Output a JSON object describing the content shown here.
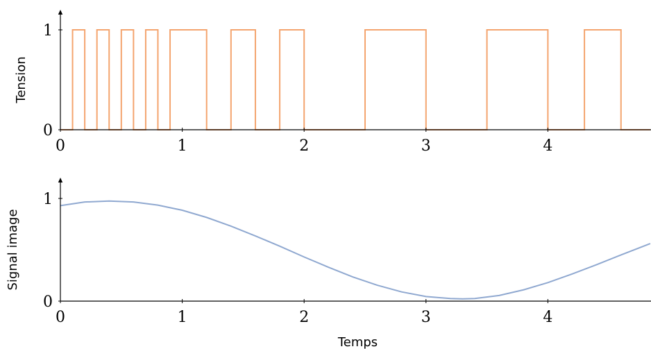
{
  "chart_data": [
    {
      "type": "line",
      "ylabel": "Tension",
      "xlim": [
        0,
        4.84
      ],
      "ylim": [
        0,
        1
      ],
      "x_ticks": [
        "0",
        "1",
        "2",
        "3",
        "4"
      ],
      "y_ticks": [
        "0",
        "1"
      ],
      "color": "#F4A46E",
      "series": [
        {
          "x": [
            0,
            0.1,
            0.1,
            0.2,
            0.2,
            0.3,
            0.3,
            0.4,
            0.4,
            0.5,
            0.5,
            0.6,
            0.6,
            0.7,
            0.7,
            0.8,
            0.8,
            0.9,
            0.9,
            1.2,
            1.2,
            1.4,
            1.4,
            1.6,
            1.6,
            1.8,
            1.8,
            2.0,
            2.0,
            2.5,
            2.5,
            3.0,
            3.0,
            3.5,
            3.5,
            4.0,
            4.0,
            4.3,
            4.3,
            4.6,
            4.6,
            4.84
          ],
          "y": [
            0,
            0,
            1,
            1,
            0,
            0,
            1,
            1,
            0,
            0,
            1,
            1,
            0,
            0,
            1,
            1,
            0,
            0,
            1,
            1,
            0,
            0,
            1,
            1,
            0,
            0,
            1,
            1,
            0,
            0,
            1,
            1,
            0,
            0,
            1,
            1,
            0,
            0,
            1,
            1,
            0,
            0
          ]
        }
      ]
    },
    {
      "type": "line",
      "ylabel": "Signal image",
      "xlabel": "Temps",
      "xlim": [
        0,
        4.84
      ],
      "ylim": [
        0,
        1
      ],
      "x_ticks": [
        "0",
        "1",
        "2",
        "3",
        "4"
      ],
      "y_ticks": [
        "0",
        "1"
      ],
      "color": "#8FA8D0",
      "series": [
        {
          "x": [
            0,
            0.2,
            0.4,
            0.6,
            0.8,
            1.0,
            1.2,
            1.4,
            1.6,
            1.8,
            2.0,
            2.2,
            2.4,
            2.6,
            2.8,
            3.0,
            3.2,
            3.3,
            3.4,
            3.6,
            3.8,
            4.0,
            4.2,
            4.4,
            4.6,
            4.84
          ],
          "y": [
            0.93,
            0.965,
            0.975,
            0.965,
            0.935,
            0.885,
            0.815,
            0.73,
            0.635,
            0.535,
            0.43,
            0.33,
            0.235,
            0.155,
            0.09,
            0.045,
            0.025,
            0.022,
            0.025,
            0.055,
            0.11,
            0.18,
            0.265,
            0.355,
            0.45,
            0.56
          ]
        }
      ]
    }
  ]
}
